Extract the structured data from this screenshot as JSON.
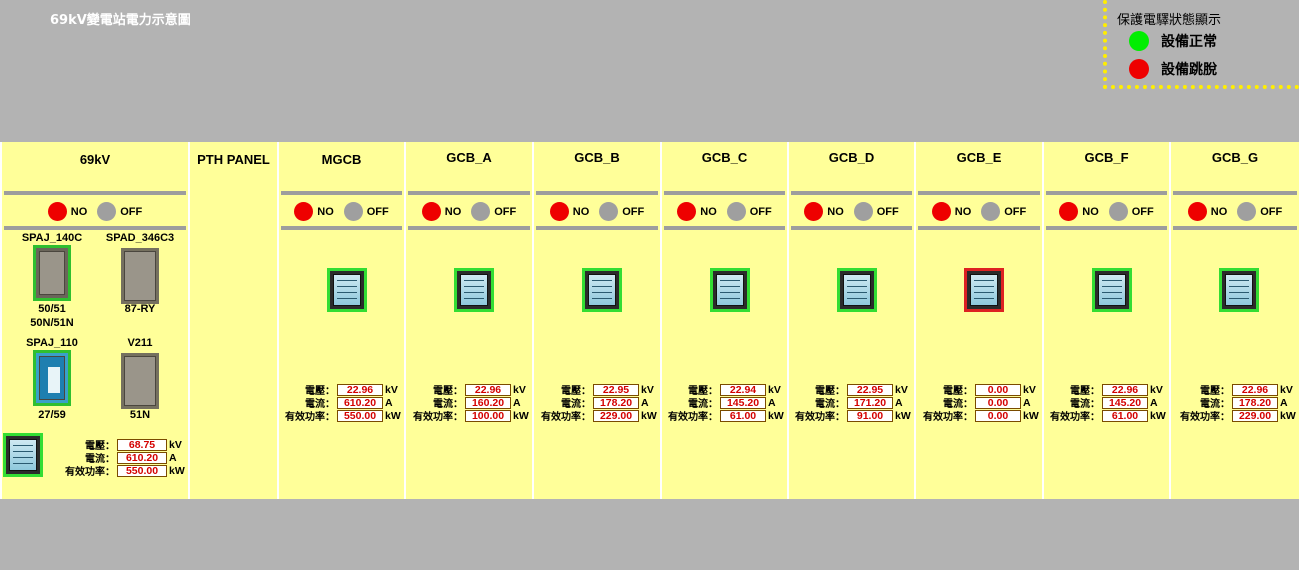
{
  "title": "69kV變電站電力示意圖",
  "legend": {
    "title": "保護電驛狀態顯示",
    "items": [
      {
        "label": "設備正常",
        "color": "#00ee00"
      },
      {
        "label": "設備跳脫",
        "color": "#ee0000"
      }
    ]
  },
  "indicator": {
    "no_label": "NO",
    "off_label": "OFF"
  },
  "units": {
    "voltage": "kV",
    "current": "A",
    "power": "kW"
  },
  "labels": {
    "voltage": "電壓：",
    "current": "電流：",
    "power": "有效功率："
  },
  "main_panel": {
    "title": "69kV",
    "relays": [
      {
        "name": "SPAJ_140C",
        "code": "50/51",
        "code2": "50N/51N"
      },
      {
        "name": "SPAD_346C3",
        "code": "87-RY"
      },
      {
        "name": "SPAJ_110",
        "code": "27/59"
      },
      {
        "name": "V211",
        "code": "51N"
      }
    ],
    "voltage": "68.75",
    "current": "610.20",
    "power": "550.00"
  },
  "pth_panel": {
    "title": "PTH PANEL"
  },
  "breakers": [
    {
      "name": "MGCB",
      "status": "normal",
      "voltage": "22.96",
      "current": "610.20",
      "power": "550.00"
    },
    {
      "name": "GCB_A",
      "status": "normal",
      "voltage": "22.96",
      "current": "160.20",
      "power": "100.00"
    },
    {
      "name": "GCB_B",
      "status": "normal",
      "voltage": "22.95",
      "current": "178.20",
      "power": "229.00"
    },
    {
      "name": "GCB_C",
      "status": "normal",
      "voltage": "22.94",
      "current": "145.20",
      "power": "61.00"
    },
    {
      "name": "GCB_D",
      "status": "normal",
      "voltage": "22.95",
      "current": "171.20",
      "power": "91.00"
    },
    {
      "name": "GCB_E",
      "status": "tripped",
      "voltage": "0.00",
      "current": "0.00",
      "power": "0.00"
    },
    {
      "name": "GCB_F",
      "status": "normal",
      "voltage": "22.96",
      "current": "145.20",
      "power": "61.00"
    },
    {
      "name": "GCB_G",
      "status": "normal",
      "voltage": "22.96",
      "current": "178.20",
      "power": "229.00"
    }
  ]
}
